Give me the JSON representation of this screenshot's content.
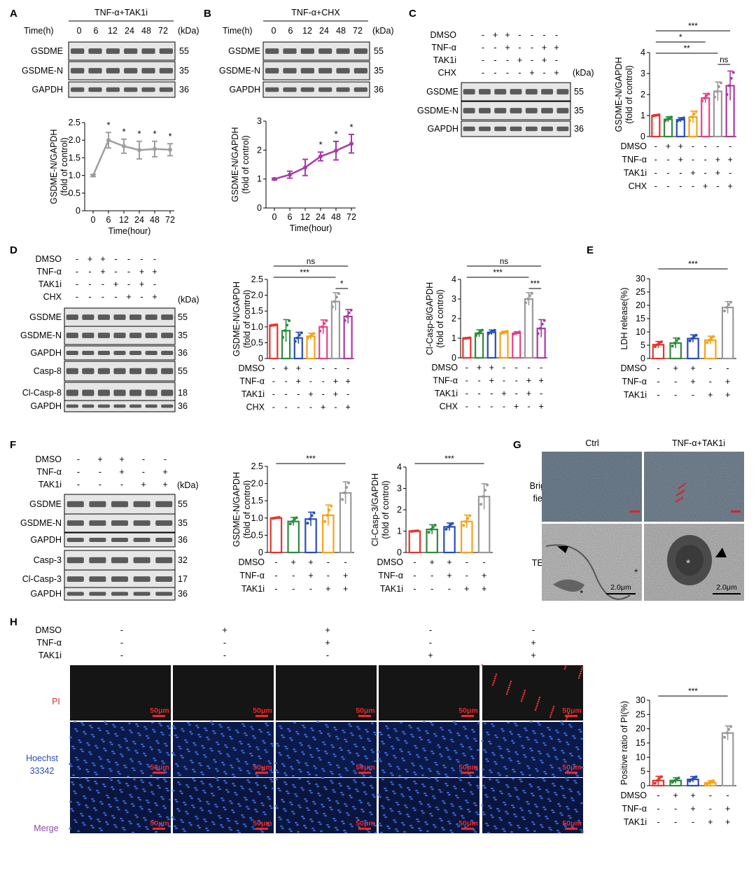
{
  "colors": {
    "red": "#e8322c",
    "green": "#2e8b3a",
    "blue": "#2a4db8",
    "orange": "#f5a31a",
    "pink": "#e5418c",
    "gray": "#9a9a9a",
    "magenta": "#a83aa8",
    "lineGray": "#9e9e9e"
  },
  "panelA": {
    "letter": "A",
    "treatment": "TNF-α+TAK1i",
    "time_label": "Time(h)",
    "times": [
      "0",
      "6",
      "12",
      "24",
      "48",
      "72"
    ],
    "kda_label": "(kDa)",
    "bands": [
      {
        "name": "GSDME",
        "kda": "55"
      },
      {
        "name": "GSDME-N",
        "kda": "35"
      },
      {
        "name": "GAPDH",
        "kda": "36"
      }
    ],
    "chart_data": {
      "type": "line",
      "x": [
        "0",
        "6",
        "12",
        "24",
        "48",
        "72"
      ],
      "values": [
        1.0,
        2.0,
        1.83,
        1.72,
        1.75,
        1.73
      ],
      "errors": [
        0.03,
        0.22,
        0.2,
        0.25,
        0.22,
        0.17
      ],
      "sig": [
        "",
        "*",
        "*",
        "*",
        "*",
        "*"
      ],
      "ylim": [
        0,
        2.5
      ],
      "yticks": [
        "0",
        "0.5",
        "1.0",
        "1.5",
        "2.0",
        "2.5"
      ],
      "ylabel1": "GSDME-N/GAPDH",
      "ylabel2": "(fold of control)",
      "xlabel": "Time(hour)"
    }
  },
  "panelB": {
    "letter": "B",
    "treatment": "TNF-α+CHX",
    "time_label": "Time(h)",
    "times": [
      "0",
      "6",
      "12",
      "24",
      "48",
      "72"
    ],
    "kda_label": "(kDa)",
    "bands": [
      {
        "name": "GSDME",
        "kda": "55"
      },
      {
        "name": "GSDME-N",
        "kda": "35"
      },
      {
        "name": "GAPDH",
        "kda": "36"
      }
    ],
    "chart_data": {
      "type": "line",
      "x": [
        "0",
        "6",
        "12",
        "24",
        "48",
        "72"
      ],
      "values": [
        1.0,
        1.15,
        1.4,
        1.78,
        1.98,
        2.22
      ],
      "errors": [
        0.03,
        0.12,
        0.28,
        0.15,
        0.32,
        0.32
      ],
      "sig": [
        "",
        "",
        "",
        "*",
        "*",
        "*"
      ],
      "ylim": [
        0,
        3
      ],
      "yticks": [
        "0",
        "1",
        "2",
        "3"
      ],
      "ylabel1": "GSDME-N/GAPDH",
      "ylabel2": "(fold of control)",
      "xlabel": "Time(hour)"
    }
  },
  "panelC": {
    "letter": "C",
    "conds": [
      {
        "name": "DMSO",
        "signs": [
          "-",
          "+",
          "+",
          "-",
          "-",
          "-",
          "-"
        ]
      },
      {
        "name": "TNF-α",
        "signs": [
          "-",
          "-",
          "+",
          "-",
          "-",
          "+",
          "+"
        ]
      },
      {
        "name": "TAK1i",
        "signs": [
          "-",
          "-",
          "-",
          "+",
          "-",
          "+",
          "-"
        ]
      },
      {
        "name": "CHX",
        "signs": [
          "-",
          "-",
          "-",
          "-",
          "+",
          "-",
          "+"
        ]
      }
    ],
    "kda_label": "(kDa)",
    "bands": [
      {
        "name": "GSDME",
        "kda": "55"
      },
      {
        "name": "GSDME-N",
        "kda": "35"
      },
      {
        "name": "GAPDH",
        "kda": "36"
      }
    ],
    "chart_data": {
      "type": "bar",
      "values": [
        1.0,
        0.82,
        0.8,
        0.93,
        1.83,
        2.15,
        2.42
      ],
      "errors": [
        0.04,
        0.12,
        0.1,
        0.28,
        0.22,
        0.45,
        0.7
      ],
      "colors": [
        "red",
        "green",
        "blue",
        "orange",
        "pink",
        "gray",
        "magenta"
      ],
      "ylim": [
        0,
        4
      ],
      "yticks": [
        "0",
        "1",
        "2",
        "3",
        "4"
      ],
      "ylabel1": "GSDME-N/GAPDH",
      "ylabel2": "(fold of control)",
      "brackets": [
        {
          "from": 0,
          "to": 6,
          "label": "***"
        },
        {
          "from": 0,
          "to": 4,
          "label": "*"
        },
        {
          "from": 0,
          "to": 5,
          "label": "**"
        },
        {
          "from": 5,
          "to": 6,
          "label": "ns"
        }
      ],
      "conds": [
        {
          "name": "DMSO",
          "signs": [
            "-",
            "+",
            "+",
            "-",
            "-",
            "-",
            "-"
          ]
        },
        {
          "name": "TNF-α",
          "signs": [
            "-",
            "-",
            "+",
            "-",
            "-",
            "+",
            "+"
          ]
        },
        {
          "name": "TAK1i",
          "signs": [
            "-",
            "-",
            "-",
            "+",
            "-",
            "+",
            "-"
          ]
        },
        {
          "name": "CHX",
          "signs": [
            "-",
            "-",
            "-",
            "-",
            "+",
            "-",
            "+"
          ]
        }
      ]
    }
  },
  "panelD": {
    "letter": "D",
    "conds": [
      {
        "name": "DMSO",
        "signs": [
          "-",
          "+",
          "+",
          "-",
          "-",
          "-",
          "-"
        ]
      },
      {
        "name": "TNF-α",
        "signs": [
          "-",
          "-",
          "+",
          "-",
          "-",
          "+",
          "+"
        ]
      },
      {
        "name": "TAK1i",
        "signs": [
          "-",
          "-",
          "-",
          "+",
          "-",
          "+",
          "-"
        ]
      },
      {
        "name": "CHX",
        "signs": [
          "-",
          "-",
          "-",
          "-",
          "+",
          "-",
          "+"
        ]
      }
    ],
    "kda_label": "(kDa)",
    "bands": [
      {
        "name": "GSDME",
        "kda": "55"
      },
      {
        "name": "GSDME-N",
        "kda": "35"
      },
      {
        "name": "GAPDH",
        "kda": "36"
      },
      {
        "name": "Casp-8",
        "kda": "55"
      },
      {
        "name": "Cl-Casp-8",
        "kda": "18"
      },
      {
        "name": "GAPDH",
        "kda": "36"
      }
    ],
    "chart1": {
      "type": "bar",
      "values": [
        1.05,
        0.88,
        0.65,
        0.7,
        1.0,
        1.8,
        1.33
      ],
      "errors": [
        0.02,
        0.35,
        0.18,
        0.1,
        0.22,
        0.28,
        0.22
      ],
      "colors": [
        "red",
        "green",
        "blue",
        "orange",
        "pink",
        "gray",
        "magenta"
      ],
      "ylim": [
        0,
        2.5
      ],
      "yticks": [
        "0",
        "0.5",
        "1.0",
        "1.5",
        "2.0",
        "2.5"
      ],
      "ylabel1": "GSDME-N/GAPDH",
      "ylabel2": "(fold of control)",
      "brackets": [
        {
          "from": 0,
          "to": 6,
          "label": "ns"
        },
        {
          "from": 0,
          "to": 5,
          "label": "***"
        },
        {
          "from": 5,
          "to": 6,
          "label": "*"
        }
      ],
      "conds": [
        {
          "name": "DMSO",
          "signs": [
            "-",
            "+",
            "+",
            "-",
            "-",
            "-",
            "-"
          ]
        },
        {
          "name": "TNF-α",
          "signs": [
            "-",
            "-",
            "+",
            "-",
            "-",
            "+",
            "+"
          ]
        },
        {
          "name": "TAK1i",
          "signs": [
            "-",
            "-",
            "-",
            "+",
            "-",
            "+",
            "-"
          ]
        },
        {
          "name": "CHX",
          "signs": [
            "-",
            "-",
            "-",
            "-",
            "+",
            "-",
            "+"
          ]
        }
      ]
    },
    "chart2": {
      "type": "bar",
      "values": [
        1.0,
        1.25,
        1.3,
        1.28,
        1.25,
        3.0,
        1.5
      ],
      "errors": [
        0.02,
        0.18,
        0.12,
        0.08,
        0.08,
        0.32,
        0.45
      ],
      "colors": [
        "red",
        "green",
        "blue",
        "orange",
        "pink",
        "gray",
        "magenta"
      ],
      "ylim": [
        0,
        4
      ],
      "yticks": [
        "0",
        "1",
        "2",
        "3",
        "4"
      ],
      "ylabel1": "Cl-Casp-8/GAPDH",
      "ylabel2": "(fold of control)",
      "brackets": [
        {
          "from": 0,
          "to": 6,
          "label": "ns"
        },
        {
          "from": 0,
          "to": 5,
          "label": "***"
        },
        {
          "from": 5,
          "to": 6,
          "label": "***"
        }
      ],
      "conds": [
        {
          "name": "DMSO",
          "signs": [
            "-",
            "+",
            "+",
            "-",
            "-",
            "-",
            "-"
          ]
        },
        {
          "name": "TNF-α",
          "signs": [
            "-",
            "-",
            "+",
            "-",
            "-",
            "+",
            "+"
          ]
        },
        {
          "name": "TAK1i",
          "signs": [
            "-",
            "-",
            "-",
            "+",
            "-",
            "+",
            "-"
          ]
        },
        {
          "name": "CHX",
          "signs": [
            "-",
            "-",
            "-",
            "-",
            "+",
            "-",
            "+"
          ]
        }
      ]
    }
  },
  "panelE": {
    "letter": "E",
    "chart_data": {
      "type": "bar",
      "values": [
        5.2,
        5.8,
        7.5,
        6.9,
        19.2
      ],
      "errors": [
        1.2,
        1.9,
        1.4,
        1.5,
        2.2
      ],
      "colors": [
        "red",
        "green",
        "blue",
        "orange",
        "gray"
      ],
      "ylim": [
        0,
        30
      ],
      "yticks": [
        "0",
        "5",
        "10",
        "15",
        "20",
        "25",
        "30"
      ],
      "ylabel1": "LDH release(%)",
      "ylabel2": "",
      "brackets": [
        {
          "from": 0,
          "to": 4,
          "label": "***"
        }
      ],
      "conds": [
        {
          "name": "DMSO",
          "signs": [
            "-",
            "+",
            "+",
            "-",
            "-"
          ]
        },
        {
          "name": "TNF-α",
          "signs": [
            "-",
            "-",
            "+",
            "-",
            "+"
          ]
        },
        {
          "name": "TAK1i",
          "signs": [
            "-",
            "-",
            "-",
            "+",
            "+"
          ]
        }
      ]
    }
  },
  "panelF": {
    "letter": "F",
    "conds": [
      {
        "name": "DMSO",
        "signs": [
          "-",
          "+",
          "+",
          "-",
          "-"
        ]
      },
      {
        "name": "TNF-α",
        "signs": [
          "-",
          "-",
          "+",
          "-",
          "+"
        ]
      },
      {
        "name": "TAK1i",
        "signs": [
          "-",
          "-",
          "-",
          "+",
          "+"
        ]
      }
    ],
    "kda_label": "(kDa)",
    "bands": [
      {
        "name": "GSDME",
        "kda": "55"
      },
      {
        "name": "GSDME-N",
        "kda": "35"
      },
      {
        "name": "GAPDH",
        "kda": "36"
      },
      {
        "name": "Casp-3",
        "kda": "32"
      },
      {
        "name": "Cl-Casp-3",
        "kda": "17"
      },
      {
        "name": "GAPDH",
        "kda": "36"
      }
    ],
    "chart1": {
      "type": "bar",
      "values": [
        1.0,
        0.9,
        0.97,
        1.08,
        1.73
      ],
      "errors": [
        0.02,
        0.12,
        0.2,
        0.3,
        0.32
      ],
      "colors": [
        "red",
        "green",
        "blue",
        "orange",
        "gray"
      ],
      "ylim": [
        0,
        2.5
      ],
      "yticks": [
        "0",
        "0.5",
        "1.0",
        "1.5",
        "2.0",
        "2.5"
      ],
      "ylabel1": "GSDME-N/GAPDH",
      "ylabel2": "(fold of control)",
      "brackets": [
        {
          "from": 0,
          "to": 4,
          "label": "***"
        }
      ],
      "conds": [
        {
          "name": "DMSO",
          "signs": [
            "-",
            "+",
            "+",
            "-",
            "-"
          ]
        },
        {
          "name": "TNF-α",
          "signs": [
            "-",
            "-",
            "+",
            "-",
            "+"
          ]
        },
        {
          "name": "TAK1i",
          "signs": [
            "-",
            "-",
            "-",
            "+",
            "+"
          ]
        }
      ]
    },
    "chart2": {
      "type": "bar",
      "values": [
        1.0,
        1.08,
        1.2,
        1.45,
        2.62
      ],
      "errors": [
        0.02,
        0.22,
        0.18,
        0.3,
        0.6
      ],
      "colors": [
        "red",
        "green",
        "blue",
        "orange",
        "gray"
      ],
      "ylim": [
        0,
        4
      ],
      "yticks": [
        "0",
        "1",
        "2",
        "3",
        "4"
      ],
      "ylabel1": "Cl-Casp-3/GAPDH",
      "ylabel2": "(fold of control)",
      "brackets": [
        {
          "from": 0,
          "to": 4,
          "label": "***"
        }
      ],
      "conds": [
        {
          "name": "DMSO",
          "signs": [
            "-",
            "+",
            "+",
            "-",
            "-"
          ]
        },
        {
          "name": "TNF-α",
          "signs": [
            "-",
            "-",
            "+",
            "-",
            "+"
          ]
        },
        {
          "name": "TAK1i",
          "signs": [
            "-",
            "-",
            "-",
            "+",
            "+"
          ]
        }
      ]
    }
  },
  "panelG": {
    "letter": "G",
    "col1": "Ctrl",
    "col2": "TNF-α+TAK1i",
    "row1a": "Bright",
    "row1b": "field",
    "row2": "TEM",
    "scale1": "2.0μm",
    "scale2": "2.0μm"
  },
  "panelH": {
    "letter": "H",
    "conds": [
      {
        "name": "DMSO",
        "signs": [
          "-",
          "+",
          "+",
          "-",
          "-"
        ]
      },
      {
        "name": "TNF-α",
        "signs": [
          "-",
          "-",
          "+",
          "-",
          "+"
        ]
      },
      {
        "name": "TAK1i",
        "signs": [
          "-",
          "-",
          "-",
          "+",
          "+"
        ]
      }
    ],
    "row_pi": "PI",
    "row_hoechst1": "Hoechst",
    "row_hoechst2": "33342",
    "row_merge": "Merge",
    "scale": "50μm",
    "chart_data": {
      "type": "bar",
      "values": [
        1.8,
        1.8,
        2.2,
        1.0,
        18.5
      ],
      "errors": [
        1.5,
        1.0,
        1.0,
        0.8,
        2.5
      ],
      "colors": [
        "red",
        "green",
        "blue",
        "orange",
        "gray"
      ],
      "ylim": [
        0,
        30
      ],
      "yticks": [
        "0",
        "5",
        "10",
        "15",
        "20",
        "25",
        "30"
      ],
      "ylabel1": "Positive ratio of PI(%)",
      "ylabel2": "",
      "brackets": [
        {
          "from": 0,
          "to": 4,
          "label": "***"
        }
      ],
      "conds": [
        {
          "name": "DMSO",
          "signs": [
            "-",
            "+",
            "+",
            "-",
            "-"
          ]
        },
        {
          "name": "TNF-α",
          "signs": [
            "-",
            "-",
            "+",
            "-",
            "+"
          ]
        },
        {
          "name": "TAK1i",
          "signs": [
            "-",
            "-",
            "-",
            "+",
            "+"
          ]
        }
      ]
    }
  }
}
